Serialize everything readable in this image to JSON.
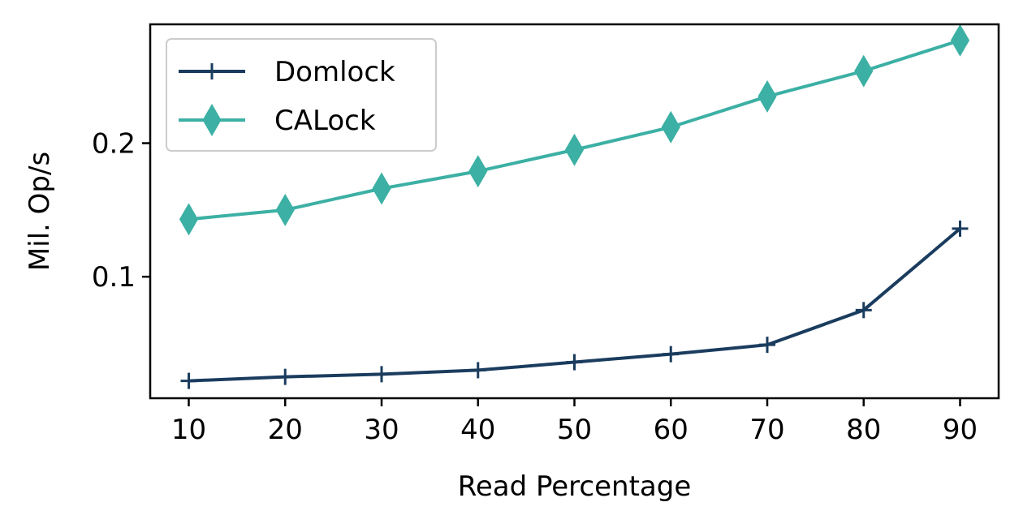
{
  "chart_data": {
    "type": "line",
    "title": "",
    "xlabel": "Read Percentage",
    "ylabel": "Mil. Op/s",
    "x": [
      10,
      20,
      30,
      40,
      50,
      60,
      70,
      80,
      90
    ],
    "xticks": [
      "10",
      "20",
      "30",
      "40",
      "50",
      "60",
      "70",
      "80",
      "90"
    ],
    "yticks": [
      0.1,
      0.2
    ],
    "ytick_labels": [
      "0.1",
      "0.2"
    ],
    "xlim": [
      6,
      94
    ],
    "ylim": [
      0.009,
      0.289
    ],
    "grid": false,
    "legend": "top-left",
    "series": [
      {
        "name": "Domlock",
        "color": "#1a3c5e",
        "marker": "plus",
        "values": [
          0.022,
          0.025,
          0.027,
          0.03,
          0.036,
          0.042,
          0.049,
          0.075,
          0.136
        ]
      },
      {
        "name": "CALock",
        "color": "#3cb0a4",
        "marker": "thin-diamond",
        "values": [
          0.143,
          0.15,
          0.166,
          0.179,
          0.195,
          0.212,
          0.235,
          0.254,
          0.277
        ]
      }
    ]
  }
}
